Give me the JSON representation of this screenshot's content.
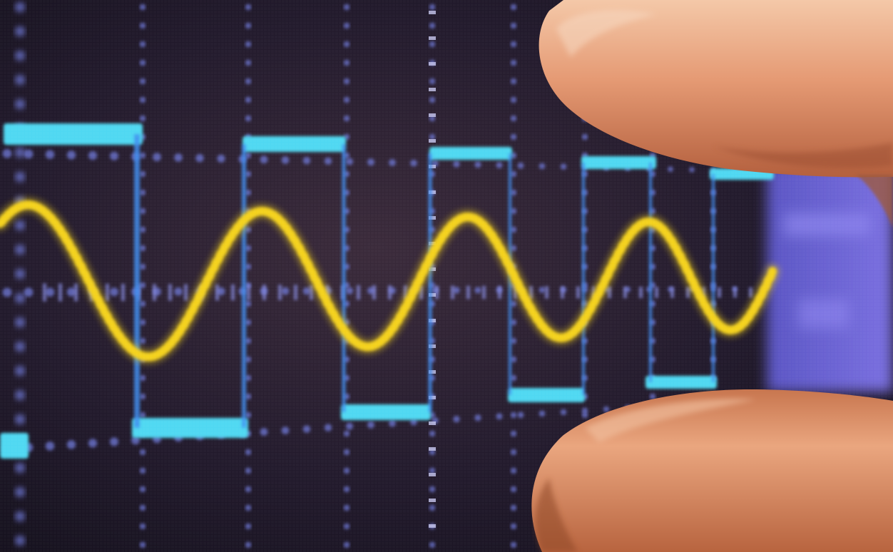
{
  "scene": {
    "subject": "oscilloscope-screen-photo",
    "background_color": "#1c1626",
    "grid_color": "#6f78d8",
    "square_wave_color": "#4fd8f2",
    "square_wave_edge_color": "#3f8df0",
    "sine_wave_color": "#f4d21e",
    "side_panel_color": "#6b64d0",
    "finger_color": "#e09a78",
    "finger_shadow_color": "#a85a3e"
  }
}
